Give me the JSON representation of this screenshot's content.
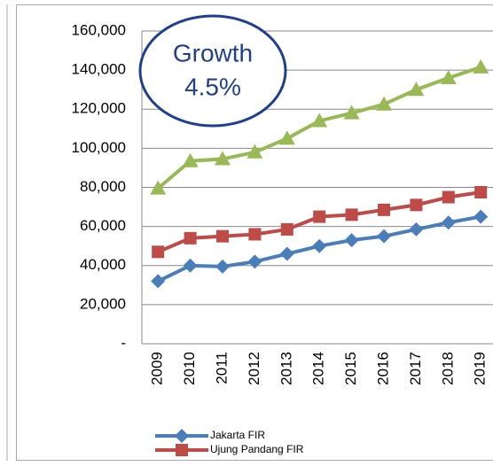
{
  "chart_data": {
    "type": "line",
    "annotations": [
      "Growth",
      "4.5%"
    ],
    "categories": [
      "2009",
      "2010",
      "2011",
      "2012",
      "2013",
      "2014",
      "2015",
      "2016",
      "2017",
      "2018",
      "2019"
    ],
    "series": [
      {
        "name": "Jakarta FIR",
        "color": "#4a7ebb",
        "marker": "diamond",
        "values": [
          32000,
          40000,
          39500,
          42000,
          46000,
          50000,
          53000,
          55000,
          58500,
          62000,
          65000
        ]
      },
      {
        "name": "Ujung Pandang FIR",
        "color": "#be4b48",
        "marker": "square",
        "values": [
          47000,
          54000,
          55000,
          56000,
          58500,
          65000,
          66000,
          68500,
          71000,
          75000,
          77500
        ]
      },
      {
        "color": "#98b954",
        "marker": "triangle",
        "values": [
          79500,
          93500,
          94500,
          98000,
          105000,
          114000,
          118000,
          122500,
          130000,
          136000,
          141500
        ]
      }
    ],
    "ylim": [
      0,
      160000
    ],
    "yticks": [
      {
        "value": 0,
        "label": "-"
      },
      {
        "value": 20000,
        "label": "20,000"
      },
      {
        "value": 40000,
        "label": "40,000"
      },
      {
        "value": 60000,
        "label": "60,000"
      },
      {
        "value": 80000,
        "label": "80,000"
      },
      {
        "value": 100000,
        "label": "100,000"
      },
      {
        "value": 120000,
        "label": "120,000"
      },
      {
        "value": 140000,
        "label": "140,000"
      },
      {
        "value": 160000,
        "label": "160,000"
      }
    ],
    "grid": true,
    "legend": "bottom"
  }
}
